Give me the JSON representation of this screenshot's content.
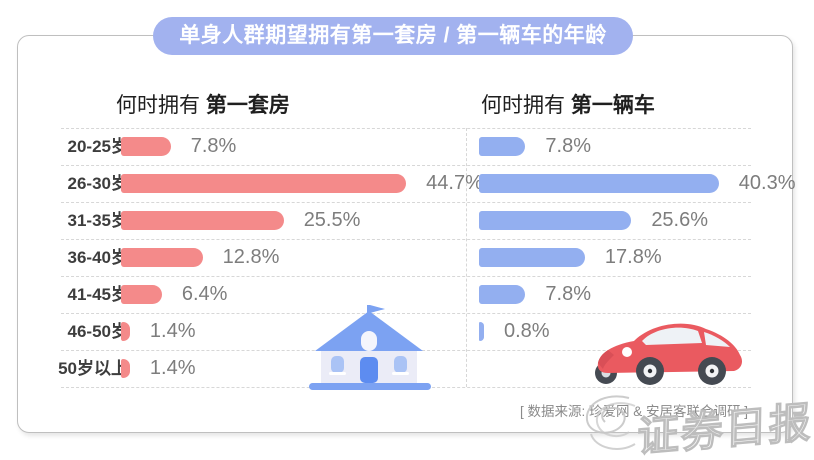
{
  "banner": {
    "title": "单身人群期望拥有第一套房 / 第一辆车的年龄",
    "bg_color": "#a2b2ef",
    "text_color": "#ffffff"
  },
  "panels": {
    "left": {
      "header_prefix": "何时拥有 ",
      "header_bold": "第一套房",
      "bar_color": "#f48a8a"
    },
    "right": {
      "header_prefix": "何时拥有 ",
      "header_bold": "第一辆车",
      "bar_color": "#93aff0"
    }
  },
  "footer": {
    "source": "[ 数据来源: 珍爱网 & 安居客联合调研 ]"
  },
  "watermark": {
    "text": "证券日报"
  },
  "chart_data": {
    "type": "bar",
    "orientation": "horizontal",
    "title": "单身人群期望拥有第一套房 / 第一辆车的年龄",
    "categories": [
      "20-25岁",
      "26-30岁",
      "31-35岁",
      "36-40岁",
      "41-45岁",
      "46-50岁",
      "50岁以上"
    ],
    "series": [
      {
        "name": "何时拥有 第一套房",
        "color": "#f48a8a",
        "values": [
          7.8,
          44.7,
          25.5,
          12.8,
          6.4,
          1.4,
          1.4
        ],
        "labels": [
          "7.8%",
          "44.7%",
          "25.5%",
          "12.8%",
          "6.4%",
          "1.4%",
          "1.4%"
        ]
      },
      {
        "name": "何时拥有 第一辆车",
        "color": "#93aff0",
        "values": [
          7.8,
          40.3,
          25.6,
          17.8,
          7.8,
          0.8,
          null
        ],
        "labels": [
          "7.8%",
          "40.3%",
          "25.6%",
          "17.8%",
          "7.8%",
          "0.8%",
          ""
        ]
      }
    ],
    "value_suffix": "%",
    "xlim": [
      0,
      48
    ],
    "grid": "dashed-row-separators",
    "legend_position": "none"
  }
}
